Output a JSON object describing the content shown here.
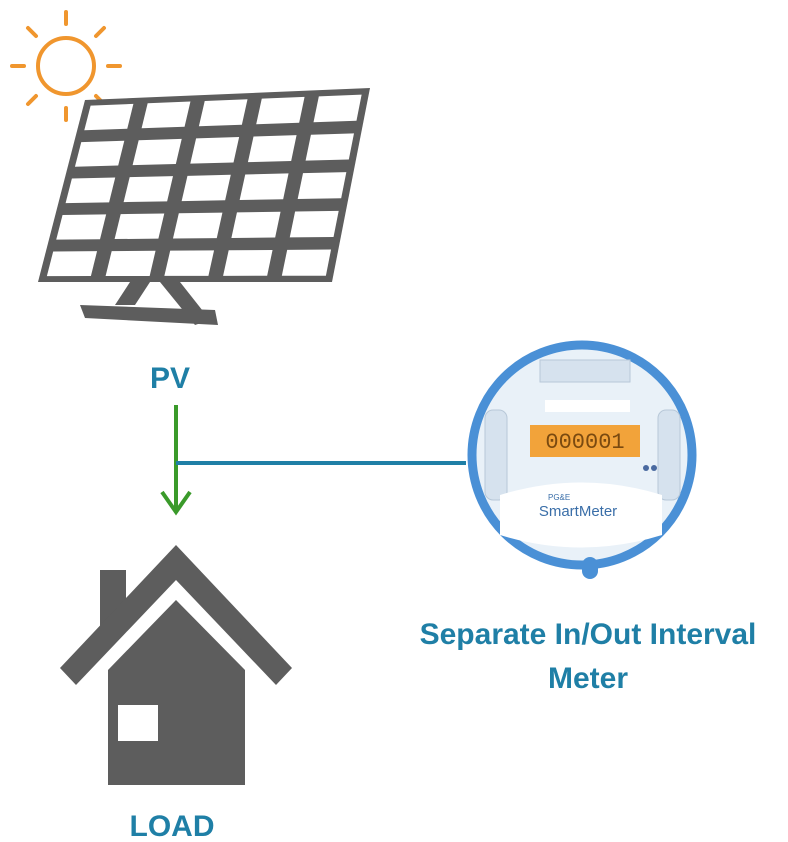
{
  "nodes": [
    {
      "label": "PV"
    },
    {
      "label": "LOAD"
    },
    {
      "label_lines": [
        "Separate In/Out Interval",
        "Meter"
      ],
      "display": "000001",
      "brand": "PG&E",
      "logo": "SmartMeter"
    }
  ]
}
